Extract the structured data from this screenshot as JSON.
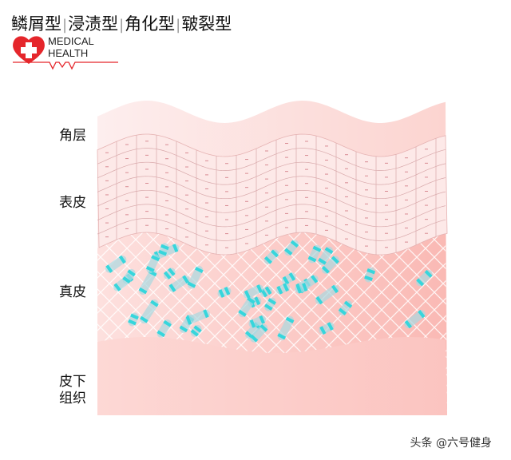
{
  "title": {
    "parts": [
      "鳞屑型",
      "浸渍型",
      "角化型",
      "皲裂型"
    ],
    "separator": "|"
  },
  "logo": {
    "line1": "MEDICAL",
    "line2": "HEALTH",
    "icon": "heart-cross-icon",
    "color": "#e5262b"
  },
  "layers": {
    "corneum": "角层",
    "epidermis": "表皮",
    "dermis": "真皮",
    "subcutis_line1": "皮下",
    "subcutis_line2": "组织"
  },
  "colors": {
    "corneum": "#fde3e1",
    "epidermis": "#fde8e7",
    "dermis": "#fbc8c4",
    "subcutis": "#fcd0cc",
    "cell": "#36d6dc"
  },
  "watermark": "头条 @六号健身"
}
